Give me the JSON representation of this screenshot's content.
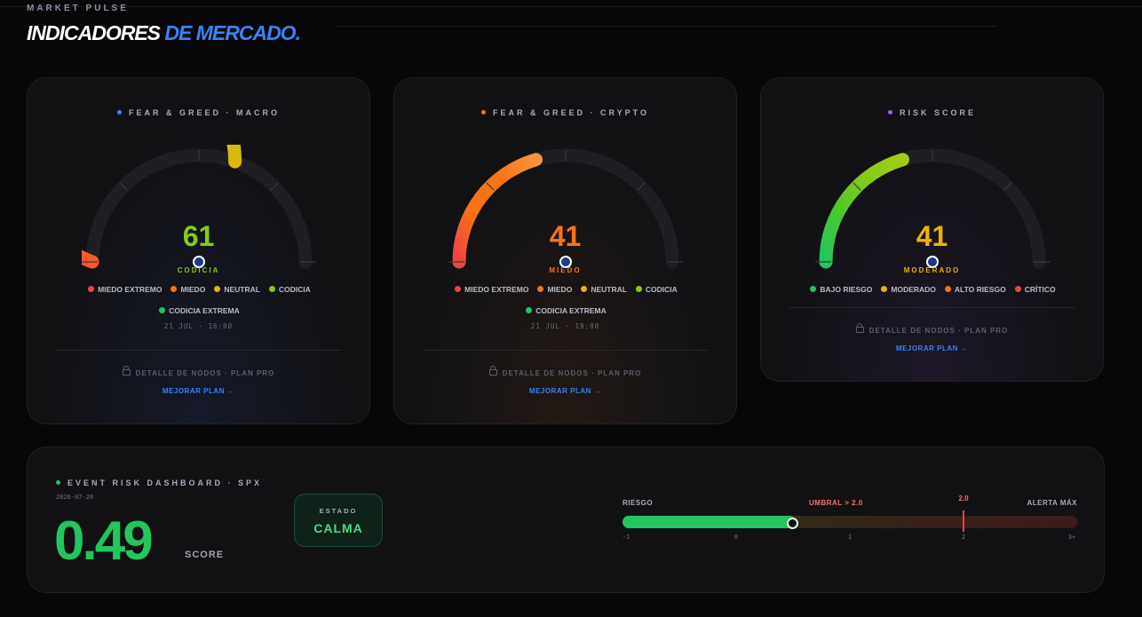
{
  "header": {
    "overline": "MARKET PULSE",
    "title_white": "INDICADORES",
    "title_blue": "DE MERCADO."
  },
  "colors": {
    "blue_accent": "#3b82f6",
    "green": "#22c55e",
    "lime": "#84cc16",
    "yellow": "#eab308",
    "orange": "#f97316",
    "red": "#ef4444"
  },
  "gauges": [
    {
      "title": "FEAR & GREED · MACRO",
      "title_dot_color": "#3b82f6",
      "value": "61",
      "fraction": 0.61,
      "value_color": "#84cc16",
      "label": "CODICIA",
      "label_color": "#84cc16",
      "arc_stops": [
        "#ef4444",
        "#f97316",
        "#eab308",
        "#a3cc16"
      ],
      "legend": [
        {
          "label": "MIEDO EXTREMO",
          "color": "#ef4444"
        },
        {
          "label": "MIEDO",
          "color": "#f97316"
        },
        {
          "label": "NEUTRAL",
          "color": "#eab308"
        },
        {
          "label": "CODICIA",
          "color": "#84cc16"
        },
        {
          "label": "CODICIA EXTREMA",
          "color": "#22c55e"
        }
      ],
      "timestamp": "21 JUL · 16:00",
      "locked_text": "DETALLE DE NODOS · PLAN PRO",
      "upgrade_text": "MEJORAR PLAN →"
    },
    {
      "title": "FEAR & GREED · CRYPTO",
      "title_dot_color": "#f97316",
      "value": "41",
      "fraction": 0.41,
      "value_color": "#f97316",
      "label": "MIEDO",
      "label_color": "#f97316",
      "arc_stops": [
        "#ef4444",
        "#f97316",
        "#f97316",
        "#fb923c"
      ],
      "legend": [
        {
          "label": "MIEDO EXTREMO",
          "color": "#ef4444"
        },
        {
          "label": "MIEDO",
          "color": "#f97316"
        },
        {
          "label": "NEUTRAL",
          "color": "#eab308"
        },
        {
          "label": "CODICIA",
          "color": "#84cc16"
        },
        {
          "label": "CODICIA EXTREMA",
          "color": "#22c55e"
        }
      ],
      "timestamp": "21 JUL · 19:00",
      "locked_text": "DETALLE DE NODOS · PLAN PRO",
      "upgrade_text": "MEJORAR PLAN →"
    },
    {
      "title": "RISK SCORE",
      "title_dot_color": "#a855f7",
      "value": "41",
      "fraction": 0.41,
      "value_color": "#eab308",
      "label": "MODERADO",
      "label_color": "#eab308",
      "arc_stops": [
        "#22c55e",
        "#4cc72a",
        "#84cc16",
        "#a3cc16"
      ],
      "legend": [
        {
          "label": "BAJO RIESGO",
          "color": "#22c55e"
        },
        {
          "label": "MODERADO",
          "color": "#eab308"
        },
        {
          "label": "ALTO RIESGO",
          "color": "#f97316"
        },
        {
          "label": "CRÍTICO",
          "color": "#ef4444"
        }
      ],
      "timestamp": "",
      "locked_text": "DETALLE DE NODOS · PLAN PRO",
      "upgrade_text": "MEJORAR PLAN →"
    }
  ],
  "event": {
    "title": "EVENT RISK DASHBOARD · SPX",
    "title_dot_color": "#22c55e",
    "date": "2026-07-20",
    "score": "0.49",
    "score_value": 0.49,
    "score_label": "SCORE",
    "state_label": "ESTADO",
    "state_value": "CALMA",
    "risk_label": "RIESGO",
    "threshold_label": "UMBRAL > 2.0",
    "threshold_value": 2.0,
    "threshold_marker": "2.0",
    "max_label": "ALERTA MÁX",
    "scale_min": -1,
    "scale_max": 3,
    "ticks": [
      "-1",
      "0",
      "1",
      "2",
      "3+"
    ]
  }
}
